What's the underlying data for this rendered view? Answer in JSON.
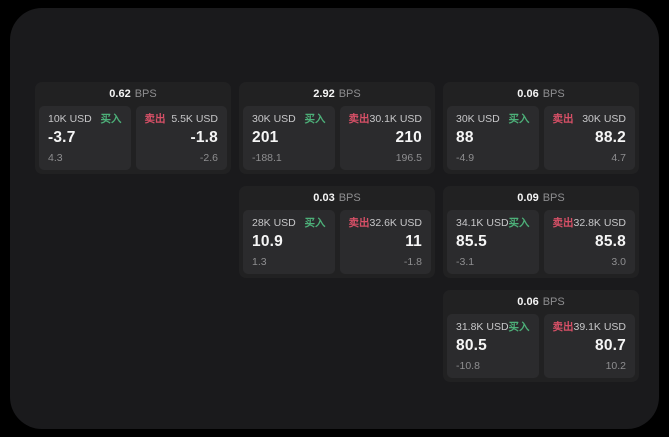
{
  "colors": {
    "background": "#000000",
    "panel": "#1a1a1c",
    "card": "#212122",
    "pane": "#2b2b2d",
    "text_primary": "#f5f5f5",
    "text_secondary": "#c7c7c9",
    "text_muted": "#8e8e90",
    "buy": "#4db079",
    "sell": "#d75067"
  },
  "labels": {
    "bps_unit": "BPS",
    "buy": "买入",
    "sell": "卖出"
  },
  "cards": [
    {
      "row": 1,
      "col": 1,
      "bps": "0.62",
      "buy": {
        "amount": "10K USD",
        "value": "-3.7",
        "delta": "4.3"
      },
      "sell": {
        "amount": "5.5K USD",
        "value": "-1.8",
        "delta": "-2.6"
      }
    },
    {
      "row": 1,
      "col": 2,
      "bps": "2.92",
      "buy": {
        "amount": "30K USD",
        "value": "201",
        "delta": "-188.1"
      },
      "sell": {
        "amount": "30.1K USD",
        "value": "210",
        "delta": "196.5"
      }
    },
    {
      "row": 1,
      "col": 3,
      "bps": "0.06",
      "buy": {
        "amount": "30K USD",
        "value": "88",
        "delta": "-4.9"
      },
      "sell": {
        "amount": "30K USD",
        "value": "88.2",
        "delta": "4.7"
      }
    },
    {
      "row": 2,
      "col": 2,
      "bps": "0.03",
      "buy": {
        "amount": "28K USD",
        "value": "10.9",
        "delta": "1.3"
      },
      "sell": {
        "amount": "32.6K USD",
        "value": "11",
        "delta": "-1.8"
      }
    },
    {
      "row": 2,
      "col": 3,
      "bps": "0.09",
      "buy": {
        "amount": "34.1K USD",
        "value": "85.5",
        "delta": "-3.1"
      },
      "sell": {
        "amount": "32.8K USD",
        "value": "85.8",
        "delta": "3.0"
      }
    },
    {
      "row": 3,
      "col": 3,
      "bps": "0.06",
      "buy": {
        "amount": "31.8K USD",
        "value": "80.5",
        "delta": "-10.8"
      },
      "sell": {
        "amount": "39.1K USD",
        "value": "80.7",
        "delta": "10.2"
      }
    }
  ]
}
